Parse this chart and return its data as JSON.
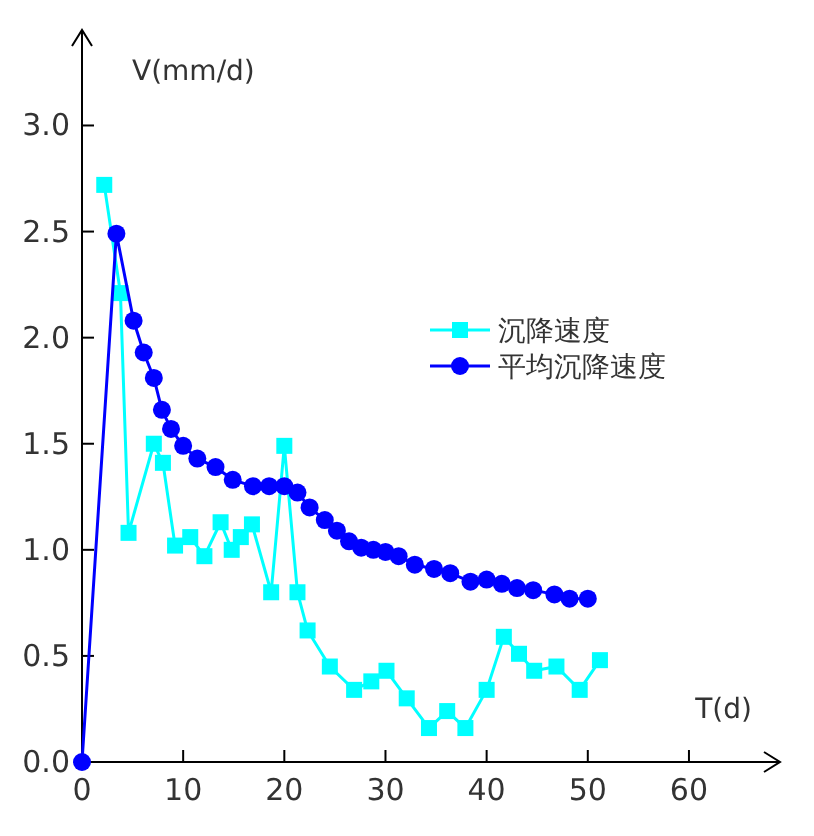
{
  "chart_data": {
    "type": "line",
    "xlabel": "T(d)",
    "ylabel": "V(mm/d)",
    "xlim": [
      0,
      69
    ],
    "ylim": [
      0,
      3.45
    ],
    "xticks": [
      0,
      10,
      20,
      30,
      40,
      50,
      60
    ],
    "yticks": [
      {
        "value": 0,
        "label": "0.0"
      },
      {
        "value": 0.5,
        "label": "0.5"
      },
      {
        "value": 1,
        "label": "1.0"
      },
      {
        "value": 1.5,
        "label": "1.5"
      },
      {
        "value": 2,
        "label": "2.0"
      },
      {
        "value": 2.5,
        "label": "2.5"
      },
      {
        "value": 3,
        "label": "3.0"
      }
    ],
    "legend": "top right",
    "grid": false,
    "series": [
      {
        "name": "沉降速度",
        "color": "#00ffff",
        "marker": "square",
        "x": [
          2.2,
          3.8,
          4.6,
          7.1,
          8.0,
          9.2,
          10.7,
          12.1,
          13.7,
          14.8,
          15.7,
          16.8,
          18.7,
          20.0,
          21.3,
          22.3,
          24.5,
          26.9,
          28.6,
          30.1,
          32.1,
          34.3,
          36.1,
          37.9,
          40.0,
          41.7,
          43.2,
          44.7,
          46.9,
          49.2,
          51.2
        ],
        "values": [
          2.72,
          2.21,
          1.08,
          1.5,
          1.41,
          1.02,
          1.06,
          0.97,
          1.13,
          1.0,
          1.06,
          1.12,
          0.8,
          1.49,
          0.8,
          0.62,
          0.45,
          0.34,
          0.38,
          0.43,
          0.3,
          0.16,
          0.24,
          0.16,
          0.34,
          0.59,
          0.51,
          0.43,
          0.45,
          0.34,
          0.48
        ]
      },
      {
        "name": "平均沉降速度",
        "color": "#0000ff",
        "marker": "circle",
        "x": [
          0,
          3.4,
          5.1,
          6.1,
          7.1,
          7.9,
          8.8,
          10.0,
          11.4,
          13.2,
          14.9,
          16.9,
          18.5,
          20.0,
          21.3,
          22.5,
          24.0,
          25.2,
          26.4,
          27.6,
          28.8,
          30.0,
          31.3,
          32.9,
          34.8,
          36.4,
          38.4,
          40.0,
          41.5,
          43.0,
          44.6,
          46.7,
          48.2,
          50.0
        ],
        "values": [
          0,
          2.49,
          2.08,
          1.93,
          1.81,
          1.66,
          1.57,
          1.49,
          1.43,
          1.39,
          1.33,
          1.3,
          1.3,
          1.3,
          1.27,
          1.2,
          1.14,
          1.09,
          1.04,
          1.01,
          1.0,
          0.99,
          0.97,
          0.93,
          0.91,
          0.89,
          0.85,
          0.86,
          0.84,
          0.82,
          0.81,
          0.79,
          0.77,
          0.77
        ]
      }
    ]
  }
}
